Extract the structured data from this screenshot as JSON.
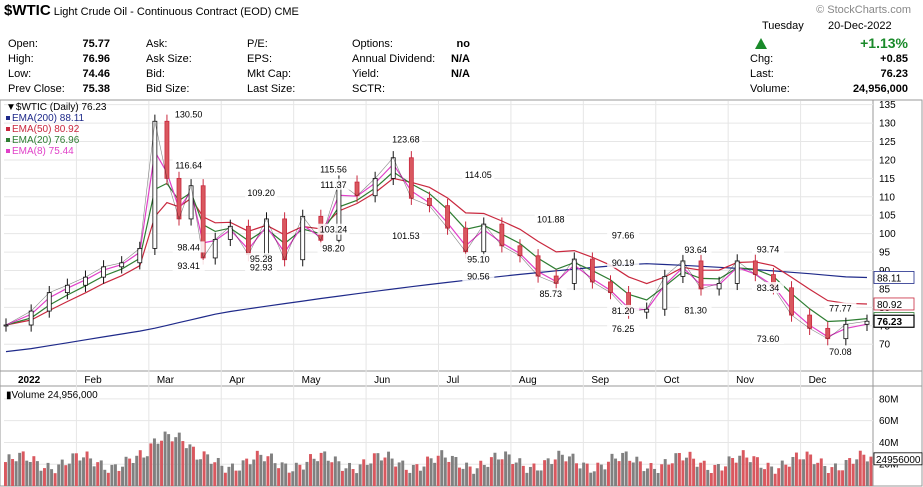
{
  "header": {
    "symbol": "$WTIC",
    "name": "Light Crude Oil - Continuous Contract (EOD)",
    "exchange": "CME",
    "watermark": "© StockCharts.com",
    "day": "Tuesday",
    "date": "20-Dec-2022",
    "pct_change": "+1.13%",
    "fields": [
      {
        "label": "Open:",
        "value": "75.77"
      },
      {
        "label": "High:",
        "value": "76.96"
      },
      {
        "label": "Low:",
        "value": "74.46"
      },
      {
        "label": "Prev Close:",
        "value": "75.38"
      }
    ],
    "col2": [
      "Ask:",
      "Ask Size:",
      "Bid:",
      "Bid Size:"
    ],
    "col3": [
      "P/E:",
      "EPS:",
      "Mkt Cap:",
      "Last Size:"
    ],
    "col4": [
      {
        "label": "Options:",
        "value": "no"
      },
      {
        "label": "Annual Dividend:",
        "value": "N/A"
      },
      {
        "label": "Yield:",
        "value": "N/A"
      },
      {
        "label": "SCTR:",
        "value": ""
      }
    ],
    "col5": [
      {
        "label": "Chg:",
        "value": "+0.85"
      },
      {
        "label": "Last:",
        "value": "76.23"
      },
      {
        "label": "Volume:",
        "value": "24,956,000"
      }
    ]
  },
  "chart_data": [
    {
      "type": "line",
      "title": "$WTIC (Daily) 76.23",
      "x": [
        "Jan",
        "Feb",
        "Mar",
        "Apr",
        "May",
        "Jun",
        "Jul",
        "Aug",
        "Sep",
        "Oct",
        "Nov",
        "Dec"
      ],
      "x_axis_label_start": "2022",
      "ylim": [
        63,
        136
      ],
      "yticks": [
        70,
        75,
        80,
        85,
        90,
        95,
        100,
        105,
        110,
        115,
        120,
        125,
        130,
        135
      ],
      "grid": true,
      "legend_position": "top-left",
      "close_points": [
        [
          "Jan",
          75.21
        ],
        [
          "Jan",
          79.0
        ],
        [
          "Jan",
          84.0
        ],
        [
          "Jan",
          86.0
        ],
        [
          "Feb",
          88.2
        ],
        [
          "Feb",
          91.0
        ],
        [
          "Feb",
          92.1
        ],
        [
          "Feb",
          96.0
        ],
        [
          "Mar",
          130.5
        ],
        [
          "Mar",
          115.0
        ],
        [
          "Mar",
          104.0
        ],
        [
          "Mar",
          113.0
        ],
        [
          "Mar",
          93.41
        ],
        [
          "Mar",
          98.44
        ],
        [
          "Apr",
          102.0
        ],
        [
          "Apr",
          94.3
        ],
        [
          "Apr",
          104.0
        ],
        [
          "Apr",
          92.93
        ],
        [
          "May",
          104.7
        ],
        [
          "May",
          98.2
        ],
        [
          "May",
          114.0
        ],
        [
          "May",
          110.3
        ],
        [
          "Jun",
          115.0
        ],
        [
          "Jun",
          120.6
        ],
        [
          "Jun",
          109.6
        ],
        [
          "Jun",
          107.6
        ],
        [
          "Jul",
          101.5
        ],
        [
          "Jul",
          95.1
        ],
        [
          "Jul",
          102.6
        ],
        [
          "Jul",
          96.7
        ],
        [
          "Aug",
          94.0
        ],
        [
          "Aug",
          88.5
        ],
        [
          "Aug",
          86.5
        ],
        [
          "Aug",
          93.1
        ],
        [
          "Sep",
          86.9
        ],
        [
          "Sep",
          84.0
        ],
        [
          "Sep",
          78.7
        ],
        [
          "Sep",
          79.5
        ],
        [
          "Oct",
          88.4
        ],
        [
          "Oct",
          92.6
        ],
        [
          "Oct",
          85.0
        ],
        [
          "Oct",
          86.5
        ],
        [
          "Nov",
          92.6
        ],
        [
          "Nov",
          88.9
        ],
        [
          "Nov",
          85.3
        ],
        [
          "Nov",
          77.9
        ],
        [
          "Dec",
          74.3
        ],
        [
          "Dec",
          71.5
        ],
        [
          "Dec",
          75.4
        ],
        [
          "Dec",
          76.23
        ]
      ],
      "series": [
        {
          "name": "EMA(200) 88.11",
          "color": "#1f2a8a",
          "last": 88.11
        },
        {
          "name": "EMA(50) 80.92",
          "color": "#c9283e",
          "last": 80.92
        },
        {
          "name": "EMA(20) 76.96",
          "color": "#2e7d32",
          "last": 76.96
        },
        {
          "name": "EMA(8) 75.44",
          "color": "#e040c8",
          "last": 75.44
        }
      ],
      "price_label_name": "$WTIC (Daily)",
      "annotations": [
        {
          "x": "Mar",
          "y": 130.5,
          "label": "130.50",
          "offset": "above"
        },
        {
          "x": "Mar",
          "y": 116.64,
          "label": "116.64",
          "offset": "above"
        },
        {
          "x": "Apr",
          "y": 109.2,
          "label": "109.20",
          "offset": "above"
        },
        {
          "x": "May",
          "y": 111.37,
          "label": "111.37",
          "offset": "above"
        },
        {
          "x": "May",
          "y": 115.56,
          "label": "115.56",
          "offset": "above"
        },
        {
          "x": "Jun",
          "y": 123.68,
          "label": "123.68",
          "offset": "above"
        },
        {
          "x": "Jul",
          "y": 114.05,
          "label": "114.05",
          "offset": "above"
        },
        {
          "x": "Aug",
          "y": 101.88,
          "label": "101.88",
          "offset": "above"
        },
        {
          "x": "Sep",
          "y": 97.66,
          "label": "97.66",
          "offset": "above"
        },
        {
          "x": "Oct",
          "y": 93.64,
          "label": "93.64",
          "offset": "above"
        },
        {
          "x": "Nov",
          "y": 93.74,
          "label": "93.74",
          "offset": "above"
        },
        {
          "x": "Sep",
          "y": 90.19,
          "label": "90.19",
          "offset": "above"
        },
        {
          "x": "Nov",
          "y": 83.34,
          "label": "83.34",
          "offset": "above"
        },
        {
          "x": "Dec",
          "y": 77.77,
          "label": "77.77",
          "offset": "above"
        },
        {
          "x": "Mar",
          "y": 93.41,
          "label": "93.41",
          "offset": "below"
        },
        {
          "x": "Mar",
          "y": 98.44,
          "label": "98.44",
          "offset": "below"
        },
        {
          "x": "Apr",
          "y": 92.93,
          "label": "92.93",
          "offset": "below"
        },
        {
          "x": "Apr",
          "y": 95.28,
          "label": "95.28",
          "offset": "below"
        },
        {
          "x": "May",
          "y": 98.2,
          "label": "98.20",
          "offset": "below"
        },
        {
          "x": "May",
          "y": 103.24,
          "label": "103.24",
          "offset": "below"
        },
        {
          "x": "Jun",
          "y": 101.53,
          "label": "101.53",
          "offset": "below"
        },
        {
          "x": "Jul",
          "y": 95.1,
          "label": "95.10",
          "offset": "below"
        },
        {
          "x": "Jul",
          "y": 90.56,
          "label": "90.56",
          "offset": "below"
        },
        {
          "x": "Aug",
          "y": 85.73,
          "label": "85.73",
          "offset": "below"
        },
        {
          "x": "Sep",
          "y": 81.2,
          "label": "81.20",
          "offset": "below"
        },
        {
          "x": "Sep",
          "y": 76.25,
          "label": "76.25",
          "offset": "below"
        },
        {
          "x": "Oct",
          "y": 81.3,
          "label": "81.30",
          "offset": "below"
        },
        {
          "x": "Nov",
          "y": 73.6,
          "label": "73.60",
          "offset": "below"
        },
        {
          "x": "Dec",
          "y": 70.08,
          "label": "70.08",
          "offset": "below"
        }
      ],
      "right_labels": [
        {
          "value": 88.11,
          "text": "88.11",
          "color": "#1f2a8a"
        },
        {
          "value": 80.92,
          "text": "80.92",
          "color": "#c9283e"
        },
        {
          "value": 76.96,
          "text": "76.96",
          "color": "#2e7d32"
        },
        {
          "value": 76.23,
          "text": "76.23",
          "color": "#000000"
        }
      ]
    },
    {
      "type": "bar",
      "title": "Volume 24,956,000",
      "ylim": [
        0,
        90
      ],
      "yticks_labels": [
        "80M",
        "60M",
        "40M",
        "20M"
      ],
      "yticks_values": [
        80,
        60,
        40,
        20
      ],
      "last_label": "24956000",
      "last_value": 24.956,
      "colors": {
        "up": "#808080",
        "down": "#d9585f"
      }
    }
  ]
}
